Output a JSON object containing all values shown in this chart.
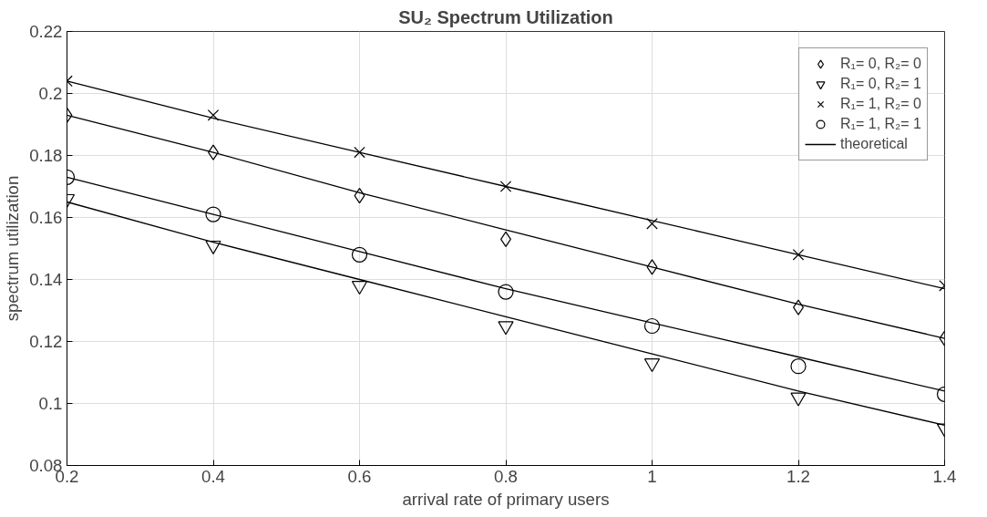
{
  "chart_data": {
    "type": "scatter",
    "title": "SU₂ Spectrum Utilization",
    "xlabel": "arrival rate of primary users",
    "ylabel": "spectrum utilization",
    "x": [
      0.2,
      0.4,
      0.6,
      0.8,
      1.0,
      1.2,
      1.4
    ],
    "xlim": [
      0.2,
      1.4
    ],
    "xticks": [
      0.2,
      0.4,
      0.6,
      0.8,
      1,
      1.2,
      1.4
    ],
    "ylim": [
      0.08,
      0.22
    ],
    "yticks": [
      0.08,
      0.1,
      0.12,
      0.14,
      0.16,
      0.18,
      0.2,
      0.22
    ],
    "grid": true,
    "legend": "top right",
    "series": [
      {
        "name": "R₁= 0, R₂= 0",
        "marker": "diamond",
        "color": "#000000",
        "values": [
          0.193,
          0.181,
          0.167,
          0.153,
          0.144,
          0.131,
          0.121
        ]
      },
      {
        "name": "R₁= 0, R₂= 1",
        "marker": "triangle",
        "color": "#000000",
        "values": [
          0.166,
          0.151,
          0.138,
          0.125,
          0.113,
          0.102,
          0.092
        ]
      },
      {
        "name": "R₁= 1, R₂= 0",
        "marker": "cross",
        "color": "#000000",
        "values": [
          0.204,
          0.193,
          0.181,
          0.17,
          0.158,
          0.148,
          0.138
        ]
      },
      {
        "name": "R₁= 1, R₂= 1",
        "marker": "circle",
        "color": "#000000",
        "values": [
          0.173,
          0.161,
          0.148,
          0.136,
          0.125,
          0.112,
          0.103
        ]
      },
      {
        "name": "theoretical",
        "type": "line",
        "line_style": "solid",
        "color": "#000000",
        "values": [
          0.204,
          0.192,
          0.181,
          0.17,
          0.159,
          0.148,
          0.137
        ]
      },
      {
        "type": "line",
        "line_style": "solid",
        "color": "#000000",
        "values": [
          0.193,
          0.181,
          0.168,
          0.156,
          0.144,
          0.132,
          0.121
        ]
      },
      {
        "type": "line",
        "line_style": "solid",
        "color": "#000000",
        "values": [
          0.173,
          0.161,
          0.149,
          0.137,
          0.126,
          0.115,
          0.104
        ]
      },
      {
        "type": "line",
        "line_style": "solid",
        "color": "#000000",
        "values": [
          0.165,
          0.152,
          0.14,
          0.128,
          0.116,
          0.104,
          0.093
        ]
      }
    ]
  }
}
